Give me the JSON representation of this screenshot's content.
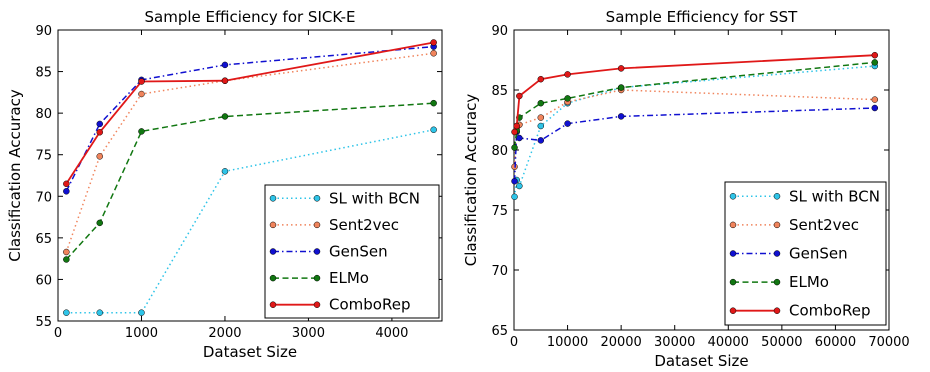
{
  "chart_data": [
    {
      "type": "line",
      "title": "Sample Efficiency for SICK-E",
      "xlabel": "Dataset Size",
      "ylabel": "Classification Accuracy",
      "xlim": [
        0,
        4600
      ],
      "ylim": [
        55,
        90
      ],
      "xticks": [
        0,
        1000,
        2000,
        3000,
        4000
      ],
      "yticks": [
        55,
        60,
        65,
        70,
        75,
        80,
        85,
        90
      ],
      "xtick_labels": [
        "0",
        "1000",
        "2000",
        "3000",
        "4000"
      ],
      "ytick_labels": [
        "55",
        "60",
        "65",
        "70",
        "75",
        "80",
        "85",
        "90"
      ],
      "grid": false,
      "legend": "bottom-right",
      "series": [
        {
          "name": "SL with BCN",
          "color": "#2ec4e8",
          "dash": "dotted",
          "x": [
            100,
            500,
            1000,
            2000,
            4500
          ],
          "y": [
            56.0,
            56.0,
            56.0,
            73.0,
            78.0
          ]
        },
        {
          "name": "Sent2vec",
          "color": "#f0845c",
          "dash": "dotted",
          "x": [
            100,
            500,
            1000,
            2000,
            4500
          ],
          "y": [
            63.3,
            74.8,
            82.3,
            83.9,
            87.2
          ]
        },
        {
          "name": "GenSen",
          "color": "#1010d0",
          "dash": "dashdot",
          "x": [
            100,
            500,
            1000,
            2000,
            4500
          ],
          "y": [
            70.6,
            78.7,
            84.0,
            85.8,
            88.0
          ]
        },
        {
          "name": "ELMo",
          "color": "#117711",
          "dash": "dashed",
          "x": [
            100,
            500,
            1000,
            2000,
            4500
          ],
          "y": [
            62.4,
            66.8,
            77.8,
            79.6,
            81.2
          ]
        },
        {
          "name": "ComboRep",
          "color": "#e01818",
          "dash": "solid",
          "x": [
            100,
            500,
            1000,
            2000,
            4500
          ],
          "y": [
            71.5,
            77.7,
            83.8,
            83.9,
            88.5
          ]
        }
      ]
    },
    {
      "type": "line",
      "title": "Sample Efficiency for SST",
      "xlabel": "Dataset Size",
      "ylabel": "Classification Accuracy",
      "xlim": [
        0,
        70000
      ],
      "ylim": [
        65,
        90
      ],
      "xticks": [
        0,
        10000,
        20000,
        30000,
        40000,
        50000,
        60000,
        70000
      ],
      "yticks": [
        65,
        70,
        75,
        80,
        85,
        90
      ],
      "xtick_labels": [
        "0",
        "10000",
        "20000",
        "30000",
        "40000",
        "50000",
        "60000",
        "70000"
      ],
      "ytick_labels": [
        "65",
        "70",
        "75",
        "80",
        "85",
        "90"
      ],
      "grid": false,
      "legend": "bottom-right",
      "series": [
        {
          "name": "SL with BCN",
          "color": "#2ec4e8",
          "dash": "dotted",
          "x": [
            100,
            500,
            1000,
            5000,
            10000,
            20000,
            67349
          ],
          "y": [
            76.1,
            77.5,
            77.0,
            82.0,
            83.9,
            85.2,
            87.0
          ]
        },
        {
          "name": "Sent2vec",
          "color": "#f0845c",
          "dash": "dotted",
          "x": [
            100,
            500,
            1000,
            5000,
            10000,
            20000,
            67349
          ],
          "y": [
            78.6,
            81.8,
            82.1,
            82.7,
            84.0,
            85.0,
            84.2
          ]
        },
        {
          "name": "GenSen",
          "color": "#1010d0",
          "dash": "dashdot",
          "x": [
            100,
            500,
            1000,
            5000,
            10000,
            20000,
            67349
          ],
          "y": [
            77.4,
            81.5,
            81.0,
            80.8,
            82.2,
            82.8,
            83.5
          ]
        },
        {
          "name": "ELMo",
          "color": "#117711",
          "dash": "dashed",
          "x": [
            100,
            500,
            1000,
            5000,
            10000,
            20000,
            67349
          ],
          "y": [
            80.2,
            81.6,
            82.7,
            83.9,
            84.3,
            85.2,
            87.3
          ]
        },
        {
          "name": "ComboRep",
          "color": "#e01818",
          "dash": "solid",
          "x": [
            100,
            500,
            1000,
            5000,
            10000,
            20000,
            67349
          ],
          "y": [
            81.5,
            82.0,
            84.5,
            85.9,
            86.3,
            86.8,
            87.9
          ]
        }
      ]
    }
  ]
}
